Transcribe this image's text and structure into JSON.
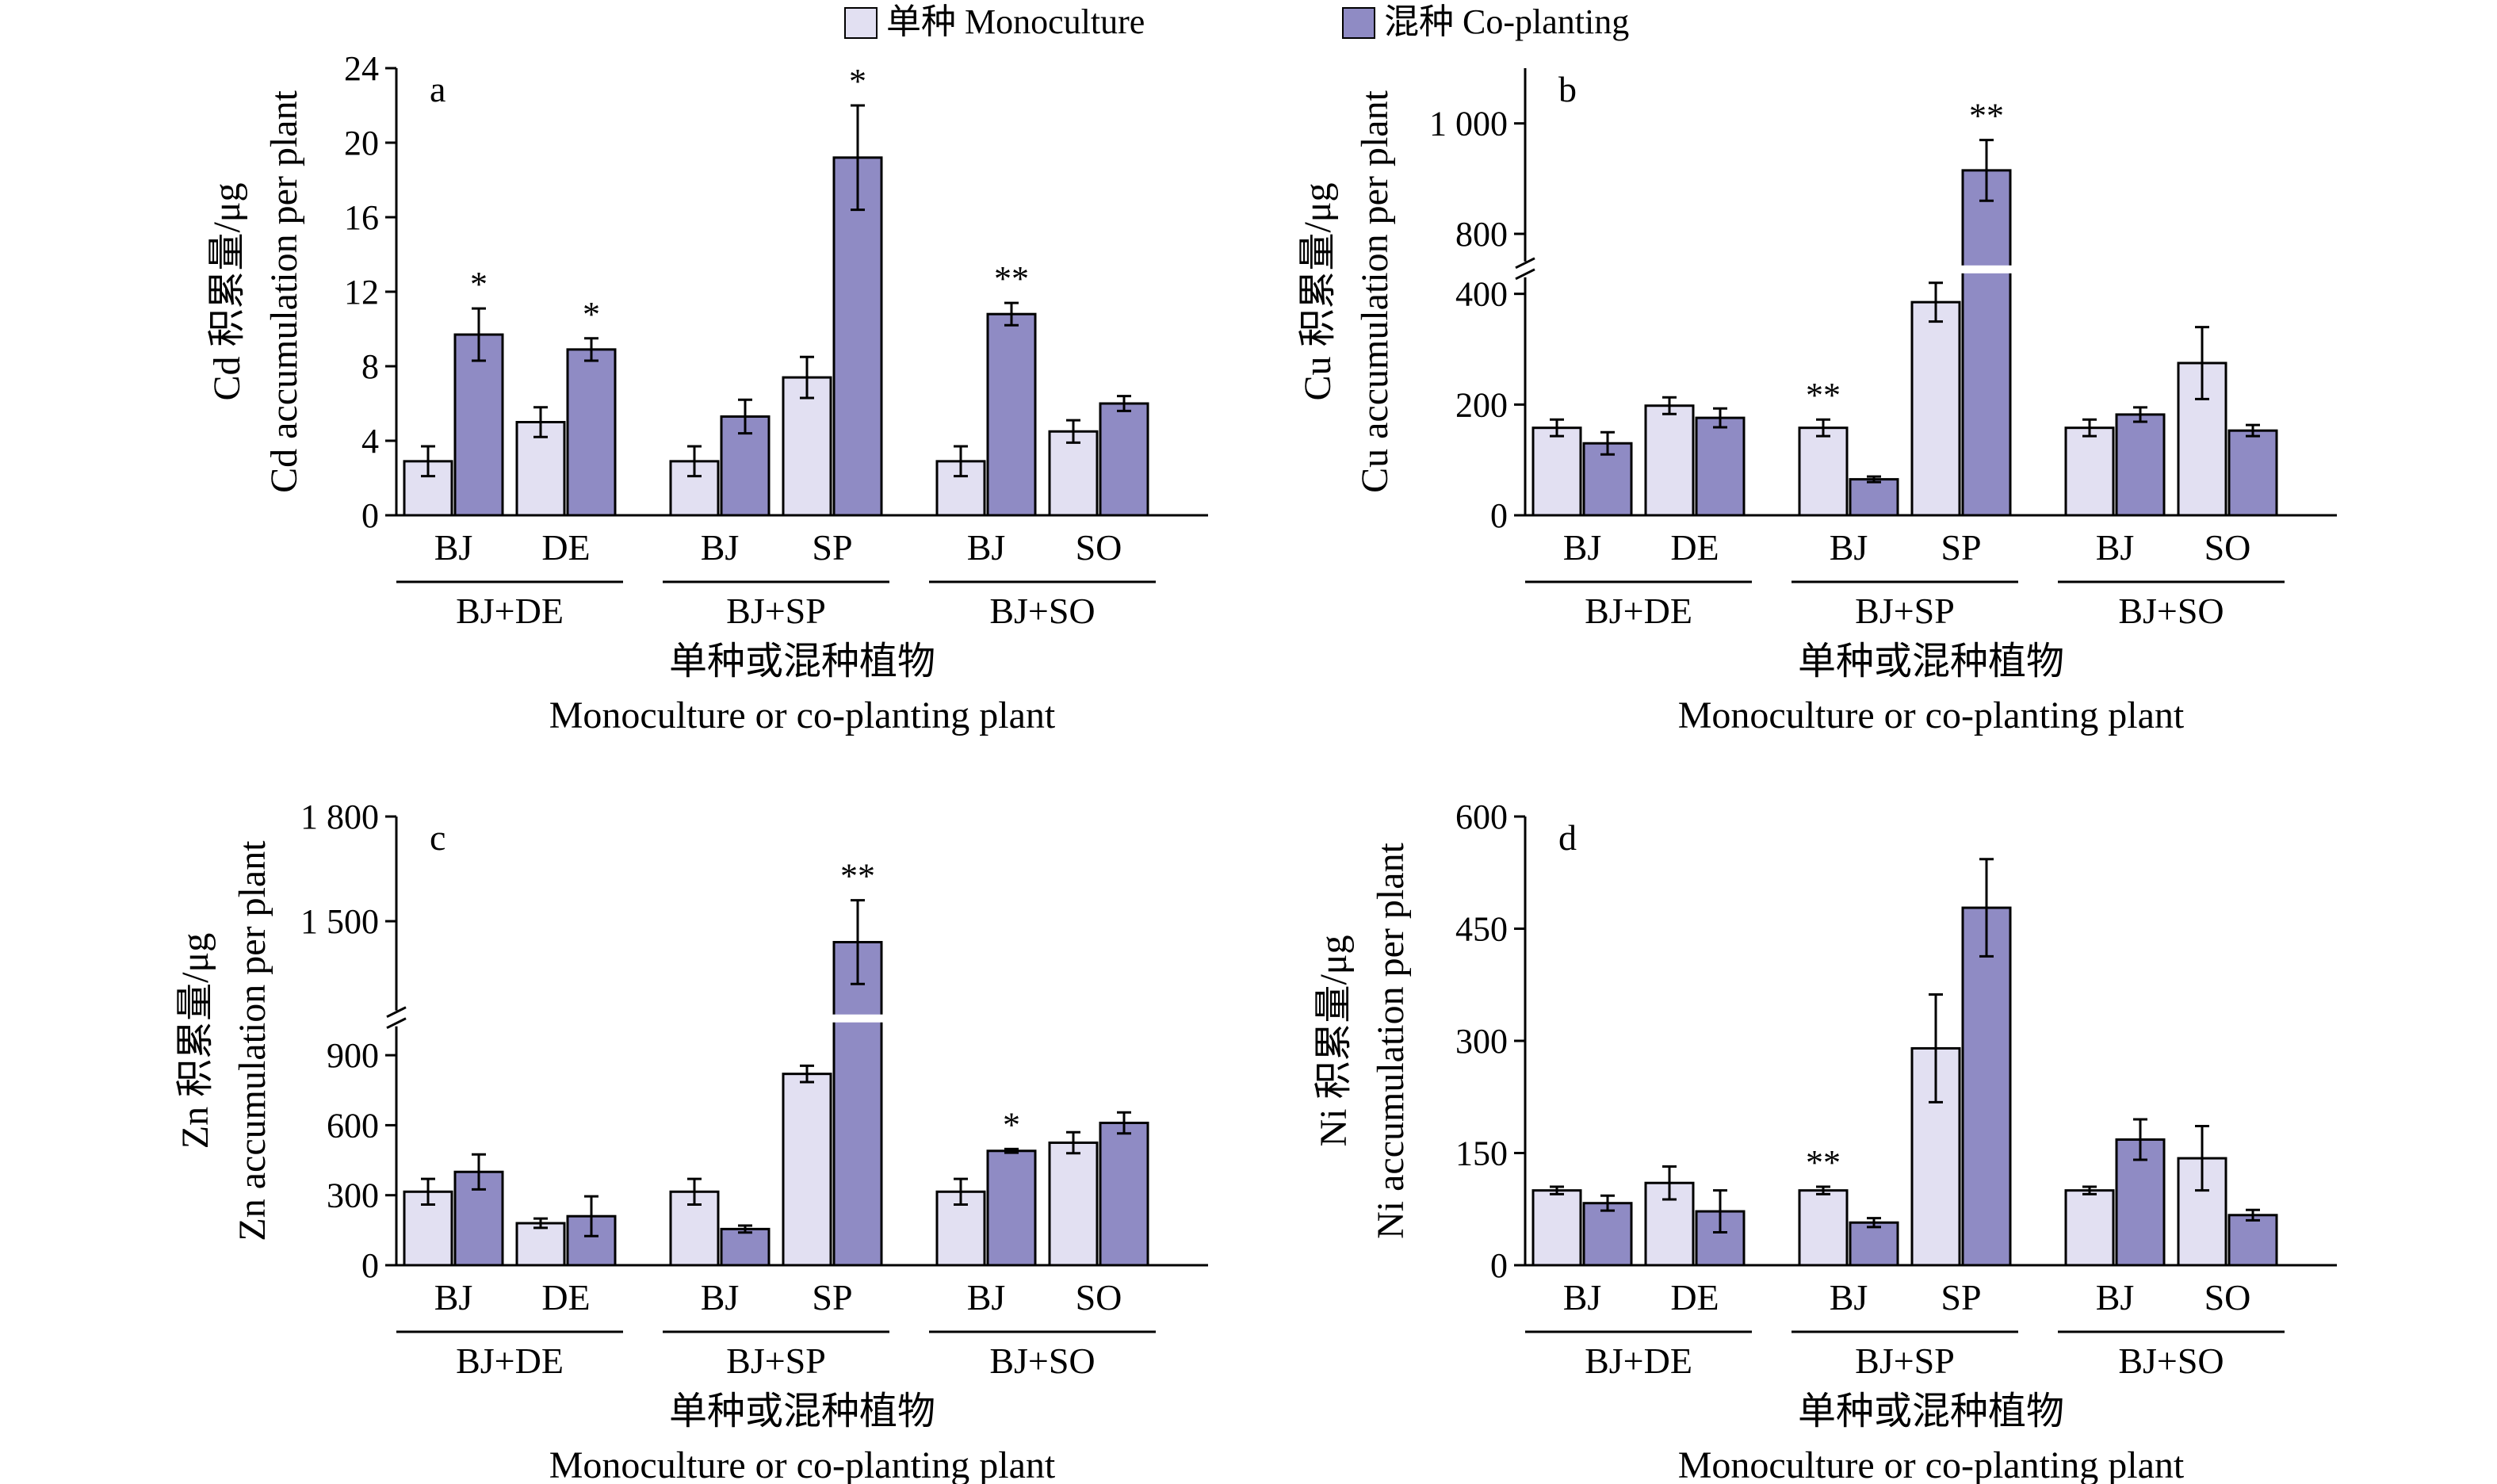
{
  "legend": {
    "entries": [
      {
        "label": "单种 Monoculture",
        "color": "#e2e0f2"
      },
      {
        "label": "混种 Co-planting",
        "color": "#8f8bc4"
      }
    ]
  },
  "colors": {
    "mono": "#e2e0f2",
    "co": "#8f8bc4",
    "stroke": "#000000"
  },
  "chart_data": [
    {
      "type": "bar",
      "panel": "a",
      "ylabel_cn": "Cd 积累量/μg",
      "ylabel_en": "Cd accumulation per plant",
      "xlabel_cn": "单种或混种植物",
      "xlabel_en": "Monoculture or co-planting plant",
      "ylim": [
        0,
        24
      ],
      "yticks": [
        0,
        4,
        8,
        12,
        16,
        20,
        24
      ],
      "ytick_labels": [
        "0",
        "4",
        "8",
        "12",
        "16",
        "20",
        "24"
      ],
      "broken_axis": false,
      "groups": [
        "BJ+DE",
        "BJ+SP",
        "BJ+SO"
      ],
      "categories": [
        "BJ",
        "DE",
        "BJ",
        "SP",
        "BJ",
        "SO"
      ],
      "series": [
        {
          "name": "单种 Monoculture",
          "values": [
            2.9,
            5.0,
            2.9,
            7.4,
            2.9,
            4.5
          ],
          "errors": [
            0.8,
            0.8,
            0.8,
            1.1,
            0.8,
            0.6
          ]
        },
        {
          "name": "混种 Co-planting",
          "values": [
            9.7,
            8.9,
            5.3,
            19.2,
            10.8,
            6.0
          ],
          "errors": [
            1.4,
            0.6,
            0.9,
            2.8,
            0.6,
            0.4
          ]
        }
      ],
      "significance": [
        {
          "index": 0,
          "mark": "*"
        },
        {
          "index": 1,
          "mark": "*"
        },
        {
          "index": 3,
          "mark": "*"
        },
        {
          "index": 4,
          "mark": "**"
        }
      ]
    },
    {
      "type": "bar",
      "panel": "b",
      "ylabel_cn": "Cu 积累量/μg",
      "ylabel_en": "Cu accumulation per plant",
      "xlabel_cn": "单种或混种植物",
      "xlabel_en": "Monoculture or co-planting plant",
      "ylim": [
        0,
        1100
      ],
      "yticks": [
        0,
        200,
        400,
        800,
        1000
      ],
      "ytick_labels": [
        "0",
        "200",
        "400",
        "800",
        "1 000"
      ],
      "broken_axis": true,
      "axis_break": [
        420,
        760
      ],
      "groups": [
        "BJ+DE",
        "BJ+SP",
        "BJ+SO"
      ],
      "categories": [
        "BJ",
        "DE",
        "BJ",
        "SP",
        "BJ",
        "SO"
      ],
      "series": [
        {
          "name": "单种 Monoculture",
          "values": [
            158,
            198,
            158,
            385,
            158,
            275
          ],
          "errors": [
            15,
            15,
            15,
            35,
            15,
            65
          ]
        },
        {
          "name": "混种 Co-planting",
          "values": [
            130,
            176,
            65,
            915,
            182,
            153
          ],
          "errors": [
            20,
            17,
            5,
            55,
            13,
            10
          ]
        }
      ],
      "significance": [
        {
          "series": 0,
          "index": 2,
          "mark": "**"
        },
        {
          "series": 1,
          "index": 3,
          "mark": "**"
        }
      ]
    },
    {
      "type": "bar",
      "panel": "c",
      "ylabel_cn": "Zn 积累量/μg",
      "ylabel_en": "Zn accumulation per plant",
      "xlabel_cn": "单种或混种植物",
      "xlabel_en": "Monoculture or co-planting plant",
      "ylim": [
        0,
        1800
      ],
      "yticks": [
        0,
        300,
        600,
        900,
        1500,
        1800
      ],
      "ytick_labels": [
        "0",
        "300",
        "600",
        "900",
        "1 500",
        "1 800"
      ],
      "broken_axis": true,
      "axis_break": [
        1000,
        1260
      ],
      "groups": [
        "BJ+DE",
        "BJ+SP",
        "BJ+SO"
      ],
      "categories": [
        "BJ",
        "DE",
        "BJ",
        "SP",
        "BJ",
        "SO"
      ],
      "series": [
        {
          "name": "单种 Monoculture",
          "values": [
            315,
            180,
            315,
            820,
            315,
            525
          ],
          "errors": [
            55,
            20,
            55,
            35,
            55,
            45
          ]
        },
        {
          "name": "混种 Co-planting",
          "values": [
            400,
            210,
            155,
            1440,
            490,
            610
          ],
          "errors": [
            75,
            85,
            15,
            120,
            8,
            45
          ]
        }
      ],
      "significance": [
        {
          "series": 1,
          "index": 3,
          "mark": "**"
        },
        {
          "series": 1,
          "index": 4,
          "mark": "*"
        }
      ]
    },
    {
      "type": "bar",
      "panel": "d",
      "ylabel_cn": "Ni 积累量/μg",
      "ylabel_en": "Ni accumulation per plant",
      "xlabel_cn": "单种或混种植物",
      "xlabel_en": "Monoculture or co-planting plant",
      "ylim": [
        0,
        600
      ],
      "yticks": [
        0,
        150,
        300,
        450,
        600
      ],
      "ytick_labels": [
        "0",
        "150",
        "300",
        "450",
        "600"
      ],
      "broken_axis": false,
      "groups": [
        "BJ+DE",
        "BJ+SP",
        "BJ+SO"
      ],
      "categories": [
        "BJ",
        "DE",
        "BJ",
        "SP",
        "BJ",
        "SO"
      ],
      "series": [
        {
          "name": "单种 Monoculture",
          "values": [
            100,
            110,
            100,
            290,
            100,
            143
          ],
          "errors": [
            5,
            22,
            5,
            72,
            5,
            43
          ]
        },
        {
          "name": "混种 Co-planting",
          "values": [
            83,
            72,
            57,
            478,
            168,
            67
          ],
          "errors": [
            10,
            28,
            6,
            65,
            27,
            7
          ]
        }
      ],
      "significance": [
        {
          "series": 0,
          "index": 2,
          "mark": "**"
        }
      ]
    }
  ]
}
